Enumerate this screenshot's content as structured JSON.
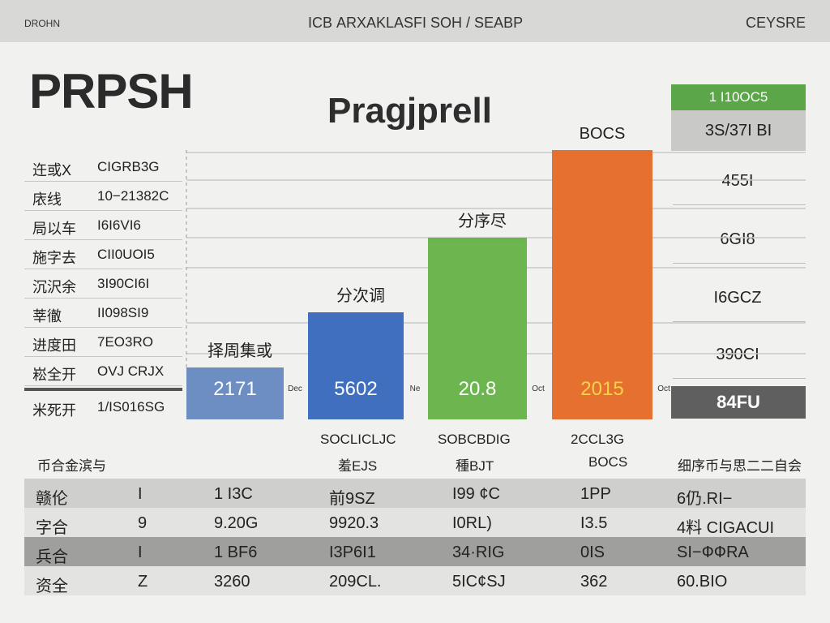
{
  "topbar": {
    "left": "DROHN",
    "center": "ICB ARXAKLASFI SOH / SEABP",
    "right": "CEYSRE"
  },
  "brand": "PRPSH",
  "left_table": {
    "rows": [
      {
        "k": "迕或X",
        "v": "CIGRB3G"
      },
      {
        "k": "庡线",
        "v": "10−21382C"
      },
      {
        "k": "局以车",
        "v": "I6I6VI6"
      },
      {
        "k": "施字去",
        "v": "CII0UOI5"
      },
      {
        "k": "沉沢余",
        "v": "3I90CI6I"
      },
      {
        "k": "莘徹",
        "v": "II098SI9"
      },
      {
        "k": "进度田",
        "v": "7EO3RO"
      },
      {
        "k": "崧全开",
        "v": "OVJ CRJX"
      }
    ],
    "total": {
      "k": "米死开",
      "v": "1/IS016SG"
    }
  },
  "right_col": {
    "legend_green": "1 I10OC5",
    "legend_grey": "3S/37I BI",
    "values": [
      "455I",
      "6GI8",
      "I6GCZ",
      "390CI"
    ],
    "total": "84FU"
  },
  "chart_data": {
    "type": "bar",
    "title": "Pragjprell",
    "categories": [
      "Dec",
      "Ne",
      "Oct",
      "Oct"
    ],
    "values": [
      2171,
      5602,
      20.8,
      2015
    ],
    "bar_labels": [
      "2171",
      "5602",
      "20.8",
      "2015"
    ],
    "top_labels": [
      "择周集或",
      "分次调",
      "分序尽",
      "BOCS"
    ],
    "ylim": [
      0,
      100
    ],
    "display_fill": [
      0.16,
      0.33,
      0.56,
      0.83
    ],
    "colors": [
      "#6d8ec3",
      "#3f6fbe",
      "#6db54f",
      "#e5702f"
    ],
    "label_colors": [
      "#ffffff",
      "#ffffff",
      "#ffffff",
      "#f5d44a"
    ],
    "grid": true
  },
  "sub_headers": [
    {
      "line1": "币合金滨与",
      "line2": ""
    },
    {
      "line1": "SOCLICLJC",
      "line2": "羞EJS"
    },
    {
      "line1": "SOBCBDIG",
      "line2": "種BJT"
    },
    {
      "line1": "2CCL3G",
      "line2": "BOCS"
    },
    {
      "line1": "细序币与思二二自会",
      "line2": ""
    }
  ],
  "bottom_table": {
    "rows": [
      [
        "赣伦",
        "I",
        "1 I3C",
        "前9SZ",
        "I99 ¢C",
        "1PP",
        "6仍.RI−"
      ],
      [
        "字合",
        "9",
        "9.20G",
        "9920.3",
        "I0RL)",
        "I3.5",
        "4料 CIGACUI"
      ],
      [
        "兵合",
        "I",
        "1 BF6",
        "I3P6I1",
        "34·RIG",
        "0IS",
        "SI−ФФRA"
      ],
      [
        "资全",
        "Z",
        "3260",
        "209CL.",
        "5IC¢SJ",
        "362",
        "60.BIO"
      ]
    ]
  }
}
